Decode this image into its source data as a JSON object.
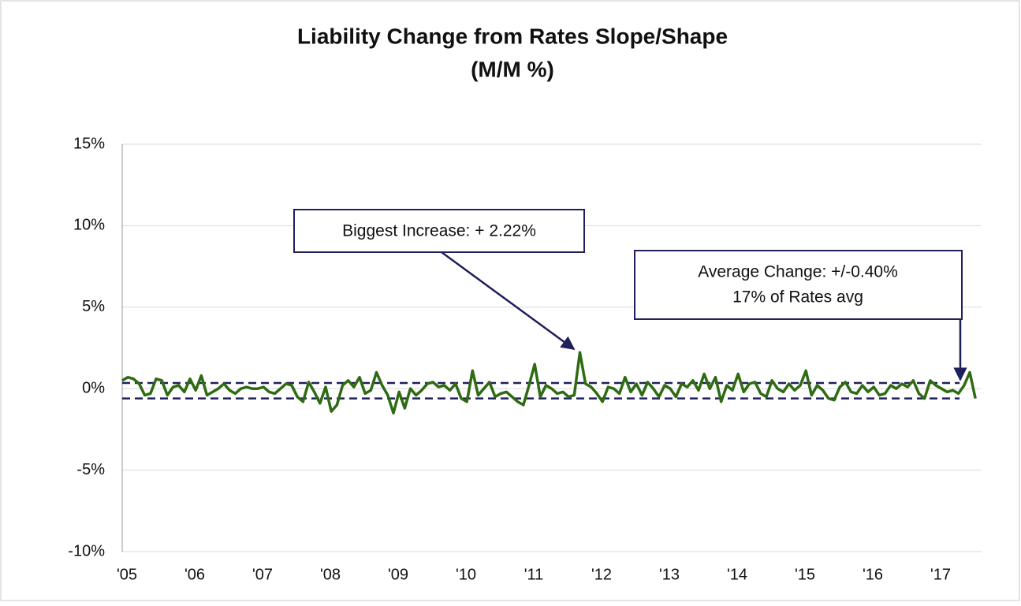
{
  "chart_data": {
    "type": "line",
    "title": "Liability  Change from Rates Slope/Shape",
    "subtitle": "(M/M %)",
    "categories": [
      "'05",
      null,
      null,
      null,
      null,
      null,
      null,
      null,
      null,
      null,
      null,
      null,
      "'06",
      null,
      null,
      null,
      null,
      null,
      null,
      null,
      null,
      null,
      null,
      null,
      "'07",
      null,
      null,
      null,
      null,
      null,
      null,
      null,
      null,
      null,
      null,
      null,
      "'08",
      null,
      null,
      null,
      null,
      null,
      null,
      null,
      null,
      null,
      null,
      null,
      "'09",
      null,
      null,
      null,
      null,
      null,
      null,
      null,
      null,
      null,
      null,
      null,
      "'10",
      null,
      null,
      null,
      null,
      null,
      null,
      null,
      null,
      null,
      null,
      null,
      "'11",
      null,
      null,
      null,
      null,
      null,
      null,
      null,
      null,
      null,
      null,
      null,
      "'12",
      null,
      null,
      null,
      null,
      null,
      null,
      null,
      null,
      null,
      null,
      null,
      "'13",
      null,
      null,
      null,
      null,
      null,
      null,
      null,
      null,
      null,
      null,
      null,
      "'14",
      null,
      null,
      null,
      null,
      null,
      null,
      null,
      null,
      null,
      null,
      null,
      "'15",
      null,
      null,
      null,
      null,
      null,
      null,
      null,
      null,
      null,
      null,
      null,
      "'16",
      null,
      null,
      null,
      null,
      null,
      null,
      null,
      null,
      null,
      null,
      null,
      "'17",
      null,
      null,
      null,
      null,
      null,
      null,
      null
    ],
    "series": [
      {
        "color": "#2e6b12",
        "values": [
          0.5,
          0.7,
          0.6,
          0.3,
          -0.4,
          -0.3,
          0.6,
          0.5,
          -0.4,
          0.1,
          0.2,
          -0.2,
          0.6,
          -0.1,
          0.8,
          -0.4,
          -0.2,
          0.0,
          0.3,
          -0.1,
          -0.3,
          0.0,
          0.1,
          0.0,
          0.0,
          0.1,
          -0.2,
          -0.3,
          0.0,
          0.3,
          0.2,
          -0.5,
          -0.8,
          0.4,
          -0.2,
          -0.9,
          0.1,
          -1.4,
          -1.0,
          0.2,
          0.5,
          0.1,
          0.7,
          -0.3,
          -0.1,
          1.0,
          0.2,
          -0.4,
          -1.5,
          -0.2,
          -1.2,
          0.0,
          -0.4,
          -0.1,
          0.3,
          0.4,
          0.1,
          0.2,
          -0.1,
          0.3,
          -0.6,
          -0.8,
          1.1,
          -0.4,
          0.0,
          0.4,
          -0.5,
          -0.3,
          -0.2,
          -0.5,
          -0.8,
          -1.0,
          0.2,
          1.5,
          -0.5,
          0.2,
          0.0,
          -0.3,
          -0.2,
          -0.5,
          -0.4,
          2.22,
          0.3,
          0.1,
          -0.3,
          -0.8,
          0.1,
          0.0,
          -0.3,
          0.7,
          -0.2,
          0.3,
          -0.4,
          0.4,
          0.0,
          -0.5,
          0.2,
          0.0,
          -0.5,
          0.3,
          0.1,
          0.5,
          -0.1,
          0.9,
          0.0,
          0.7,
          -0.8,
          0.2,
          -0.1,
          0.9,
          -0.2,
          0.3,
          0.4,
          -0.3,
          -0.5,
          0.5,
          0.0,
          -0.2,
          0.3,
          -0.1,
          0.2,
          1.1,
          -0.4,
          0.2,
          -0.1,
          -0.6,
          -0.7,
          0.1,
          0.4,
          -0.2,
          -0.3,
          0.2,
          -0.2,
          0.1,
          -0.4,
          -0.3,
          0.2,
          0.0,
          0.3,
          0.1,
          0.5,
          -0.3,
          -0.6,
          0.5,
          0.2,
          0.0,
          -0.2,
          -0.1,
          -0.3,
          0.2,
          1.0,
          -0.6
        ]
      }
    ],
    "ylim": [
      -10,
      15
    ],
    "yticks": [
      {
        "value": -10,
        "label": "-10%"
      },
      {
        "value": -5,
        "label": "-5%"
      },
      {
        "value": 0,
        "label": "0%"
      },
      {
        "value": 5,
        "label": "5%"
      },
      {
        "value": 10,
        "label": "10%"
      },
      {
        "value": 15,
        "label": "15%"
      }
    ],
    "grid": true,
    "reference_lines": [
      {
        "value": 0.35,
        "color": "#1f1f5c"
      },
      {
        "value": -0.6,
        "color": "#1f1f5c"
      }
    ],
    "annotations": [
      {
        "lines": [
          "Biggest Increase: + 2.22%"
        ]
      },
      {
        "lines": [
          "Average Change: +/-0.40%",
          "17% of Rates avg"
        ]
      }
    ]
  }
}
